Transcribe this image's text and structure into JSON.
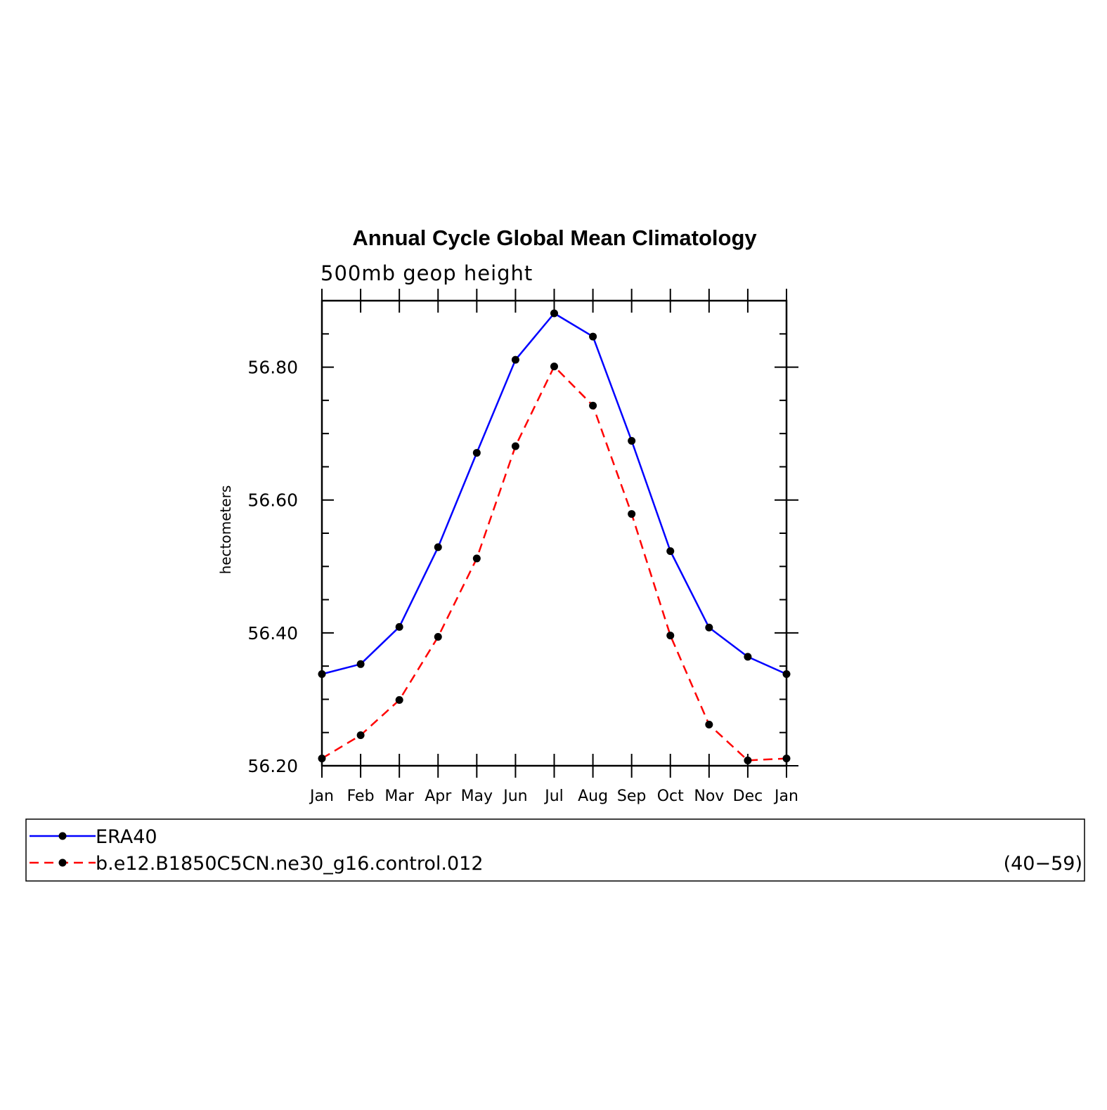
{
  "chart_data": {
    "type": "line",
    "title": "Annual Cycle Global Mean Climatology",
    "subtitle": "500mb geop height",
    "ylabel": "hectometers",
    "ylim": [
      56.2,
      56.9
    ],
    "yticks": [
      "56.20",
      "56.40",
      "56.60",
      "56.80"
    ],
    "categories": [
      "Jan",
      "Feb",
      "Mar",
      "Apr",
      "May",
      "Jun",
      "Jul",
      "Aug",
      "Sep",
      "Oct",
      "Nov",
      "Dec",
      "Jan"
    ],
    "series": [
      {
        "name": "ERA40",
        "color": "#0000ff",
        "dash": "solid",
        "values": [
          56.338,
          56.353,
          56.409,
          56.529,
          56.671,
          56.811,
          56.881,
          56.846,
          56.689,
          56.523,
          56.408,
          56.364,
          56.338
        ]
      },
      {
        "name": "b.e12.B1850C5CN.ne30_g16.control.012",
        "color": "#ff0000",
        "dash": "dashed",
        "values": [
          56.211,
          56.246,
          56.299,
          56.394,
          56.512,
          56.681,
          56.801,
          56.742,
          56.579,
          56.396,
          56.262,
          56.208,
          56.211
        ]
      }
    ],
    "legend": {
      "placement": "bottom",
      "entries": [
        "ERA40",
        "b.e12.B1850C5CN.ne30_g16.control.012"
      ],
      "note": "(40−59)"
    },
    "grid": false,
    "marker_color": "#000000"
  }
}
